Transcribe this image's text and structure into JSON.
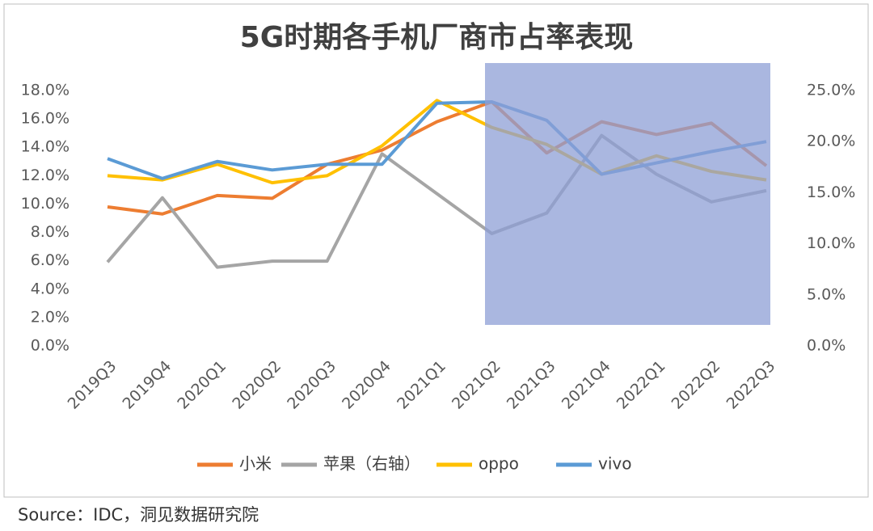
{
  "chart_data": {
    "type": "line",
    "title": "5G时期各手机厂商市占率表现",
    "categories": [
      "2019Q3",
      "2019Q4",
      "2020Q1",
      "2020Q2",
      "2020Q3",
      "2020Q4",
      "2021Q1",
      "2021Q2",
      "2021Q3",
      "2021Q4",
      "2022Q1",
      "2022Q2",
      "2022Q3"
    ],
    "series": [
      {
        "name": "小米",
        "color": "#ed7d31",
        "values": [
          9.8,
          9.3,
          10.6,
          10.4,
          12.8,
          13.8,
          15.8,
          17.2,
          13.6,
          15.8,
          14.9,
          15.7,
          12.7
        ]
      },
      {
        "name": "苹果（右轴）",
        "color": "#a5a5a5",
        "axis": "y2",
        "values": [
          8.2,
          14.5,
          7.7,
          8.3,
          8.3,
          18.8,
          14.9,
          11.0,
          13.0,
          20.6,
          16.8,
          14.1,
          15.2
        ]
      },
      {
        "name": "oppo",
        "color": "#ffc000",
        "values": [
          12.0,
          11.7,
          12.8,
          11.5,
          12.0,
          14.1,
          17.3,
          15.4,
          14.2,
          12.1,
          13.4,
          12.3,
          11.7
        ]
      },
      {
        "name": "vivo",
        "color": "#5b9bd5",
        "values": [
          13.2,
          11.8,
          13.0,
          12.4,
          12.8,
          12.8,
          17.1,
          17.2,
          15.9,
          12.1,
          12.9,
          13.7,
          14.4
        ]
      }
    ],
    "ylim": [
      0,
      18
    ],
    "yticks": [
      {
        "value": 0,
        "label": "0.0%"
      },
      {
        "value": 2,
        "label": "2.0%"
      },
      {
        "value": 4,
        "label": "4.0%"
      },
      {
        "value": 6,
        "label": "6.0%"
      },
      {
        "value": 8,
        "label": "8.0%"
      },
      {
        "value": 10,
        "label": "10.0%"
      },
      {
        "value": 12,
        "label": "12.0%"
      },
      {
        "value": 14,
        "label": "14.0%"
      },
      {
        "value": 16,
        "label": "16.0%"
      },
      {
        "value": 18,
        "label": "18.0%"
      }
    ],
    "y2lim": [
      0,
      25
    ],
    "y2ticks": [
      {
        "value": 0,
        "label": "0.0%"
      },
      {
        "value": 5,
        "label": "5.0%"
      },
      {
        "value": 10,
        "label": "10.0%"
      },
      {
        "value": 15,
        "label": "15.0%"
      },
      {
        "value": 20,
        "label": "20.0%"
      },
      {
        "value": 25,
        "label": "25.0%"
      }
    ],
    "legend": "bottom"
  },
  "source": "Source：IDC，洞见数据研究院"
}
